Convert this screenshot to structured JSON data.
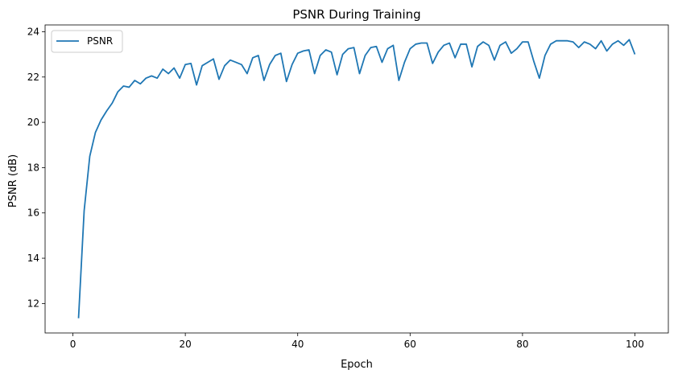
{
  "chart_data": {
    "type": "line",
    "title": "PSNR During Training",
    "xlabel": "Epoch",
    "ylabel": "PSNR (dB)",
    "xlim": [
      -4.95,
      105.95
    ],
    "ylim": [
      10.7,
      24.3
    ],
    "xticks": [
      0,
      20,
      40,
      60,
      80,
      100
    ],
    "yticks": [
      12,
      14,
      16,
      18,
      20,
      22,
      24
    ],
    "grid": false,
    "legend_position": "top-left",
    "series": [
      {
        "name": "PSNR",
        "color": "#1f77b4",
        "x": [
          1,
          2,
          3,
          4,
          5,
          6,
          7,
          8,
          9,
          10,
          11,
          12,
          13,
          14,
          15,
          16,
          17,
          18,
          19,
          20,
          21,
          22,
          23,
          24,
          25,
          26,
          27,
          28,
          29,
          30,
          31,
          32,
          33,
          34,
          35,
          36,
          37,
          38,
          39,
          40,
          41,
          42,
          43,
          44,
          45,
          46,
          47,
          48,
          49,
          50,
          51,
          52,
          53,
          54,
          55,
          56,
          57,
          58,
          59,
          60,
          61,
          62,
          63,
          64,
          65,
          66,
          67,
          68,
          69,
          70,
          71,
          72,
          73,
          74,
          75,
          76,
          77,
          78,
          79,
          80,
          81,
          82,
          83,
          84,
          85,
          86,
          87,
          88,
          89,
          90,
          91,
          92,
          93,
          94,
          95,
          96,
          97,
          98,
          99,
          100
        ],
        "values": [
          11.35,
          16.1,
          18.5,
          19.55,
          20.1,
          20.5,
          20.85,
          21.35,
          21.6,
          21.55,
          21.85,
          21.7,
          21.95,
          22.05,
          21.95,
          22.35,
          22.15,
          22.4,
          21.95,
          22.55,
          22.6,
          21.65,
          22.5,
          22.65,
          22.8,
          21.9,
          22.5,
          22.75,
          22.65,
          22.55,
          22.15,
          22.85,
          22.95,
          21.85,
          22.55,
          22.95,
          23.05,
          21.8,
          22.55,
          23.05,
          23.15,
          23.2,
          22.15,
          22.95,
          23.2,
          23.1,
          22.1,
          23.0,
          23.25,
          23.3,
          22.15,
          22.95,
          23.3,
          23.35,
          22.65,
          23.25,
          23.4,
          21.85,
          22.65,
          23.25,
          23.45,
          23.5,
          23.5,
          22.6,
          23.1,
          23.4,
          23.5,
          22.85,
          23.45,
          23.45,
          22.45,
          23.35,
          23.55,
          23.4,
          22.75,
          23.4,
          23.55,
          23.05,
          23.25,
          23.55,
          23.55,
          22.7,
          21.95,
          22.95,
          23.45,
          23.6,
          23.6,
          23.6,
          23.55,
          23.3,
          23.55,
          23.45,
          23.25,
          23.6,
          23.15,
          23.45,
          23.6,
          23.4,
          23.65,
          23.0
        ]
      }
    ]
  }
}
